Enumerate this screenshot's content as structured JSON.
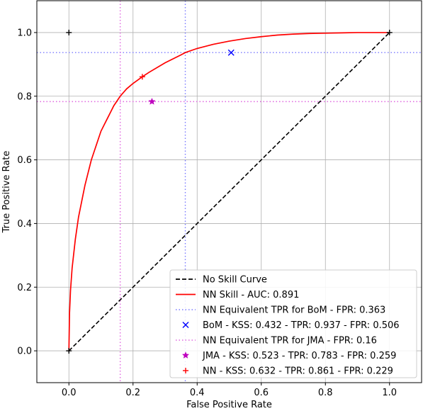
{
  "chart_data": {
    "type": "line",
    "title": "",
    "xlabel": "False Positive Rate",
    "ylabel": "True Positive Rate",
    "xlim": [
      -0.1,
      1.1
    ],
    "ylim": [
      -0.1,
      1.1
    ],
    "xticks": [
      "0.0",
      "0.2",
      "0.4",
      "0.6",
      "0.8",
      "1.0"
    ],
    "yticks": [
      "0.0",
      "0.2",
      "0.4",
      "0.6",
      "0.8",
      "1.0"
    ],
    "grid": true,
    "legend_position": "lower-right",
    "series": [
      {
        "name": "No Skill Curve",
        "kind": "line",
        "style": "dashed",
        "color": "#000000",
        "x": [
          0,
          1
        ],
        "y": [
          0,
          1
        ]
      },
      {
        "name": "NN Skill - AUC: 0.891",
        "kind": "line",
        "style": "solid",
        "color": "#ff0000",
        "x": [
          0,
          0.002,
          0.005,
          0.01,
          0.02,
          0.03,
          0.04,
          0.05,
          0.06,
          0.07,
          0.08,
          0.09,
          0.1,
          0.11,
          0.12,
          0.13,
          0.14,
          0.15,
          0.16,
          0.18,
          0.2,
          0.229,
          0.25,
          0.3,
          0.35,
          0.363,
          0.4,
          0.45,
          0.5,
          0.55,
          0.6,
          0.65,
          0.7,
          0.75,
          0.8,
          0.85,
          0.9,
          0.95,
          1.0
        ],
        "y": [
          0,
          0.12,
          0.19,
          0.26,
          0.35,
          0.42,
          0.47,
          0.52,
          0.56,
          0.6,
          0.63,
          0.66,
          0.69,
          0.71,
          0.73,
          0.75,
          0.77,
          0.785,
          0.8,
          0.823,
          0.84,
          0.861,
          0.875,
          0.905,
          0.93,
          0.937,
          0.95,
          0.963,
          0.973,
          0.981,
          0.987,
          0.992,
          0.995,
          0.997,
          0.998,
          0.999,
          1.0,
          1.0,
          1.0
        ]
      },
      {
        "name": "NN Equivalent TPR for BoM - FPR: 0.363",
        "kind": "crosshair",
        "style": "dotted",
        "color": "#7a7aff",
        "x": 0.363,
        "y": 0.937
      },
      {
        "name": "BoM - KSS: 0.432 - TPR: 0.937 - FPR: 0.506",
        "kind": "marker",
        "marker": "x",
        "color": "#0000ff",
        "x": [
          0.506
        ],
        "y": [
          0.937
        ]
      },
      {
        "name": "NN Equivalent TPR for JMA - FPR: 0.16",
        "kind": "crosshair",
        "style": "dotted",
        "color": "#e066e0",
        "x": 0.16,
        "y": 0.783
      },
      {
        "name": "JMA - KSS: 0.523 - TPR: 0.783 - FPR: 0.259",
        "kind": "marker",
        "marker": "star",
        "color": "#bf00bf",
        "x": [
          0.259
        ],
        "y": [
          0.783
        ]
      },
      {
        "name": "NN - KSS: 0.632 - TPR: 0.861 - FPR: 0.229",
        "kind": "marker",
        "marker": "plus",
        "color": "#ff0000",
        "x": [
          0.229
        ],
        "y": [
          0.861
        ]
      }
    ],
    "extra_markers": [
      {
        "marker": "plus",
        "color": "#000000",
        "x": 0,
        "y": 1
      },
      {
        "marker": "plus",
        "color": "#000000",
        "x": 0,
        "y": 0
      },
      {
        "marker": "plus",
        "color": "#000000",
        "x": 1,
        "y": 1
      }
    ]
  }
}
